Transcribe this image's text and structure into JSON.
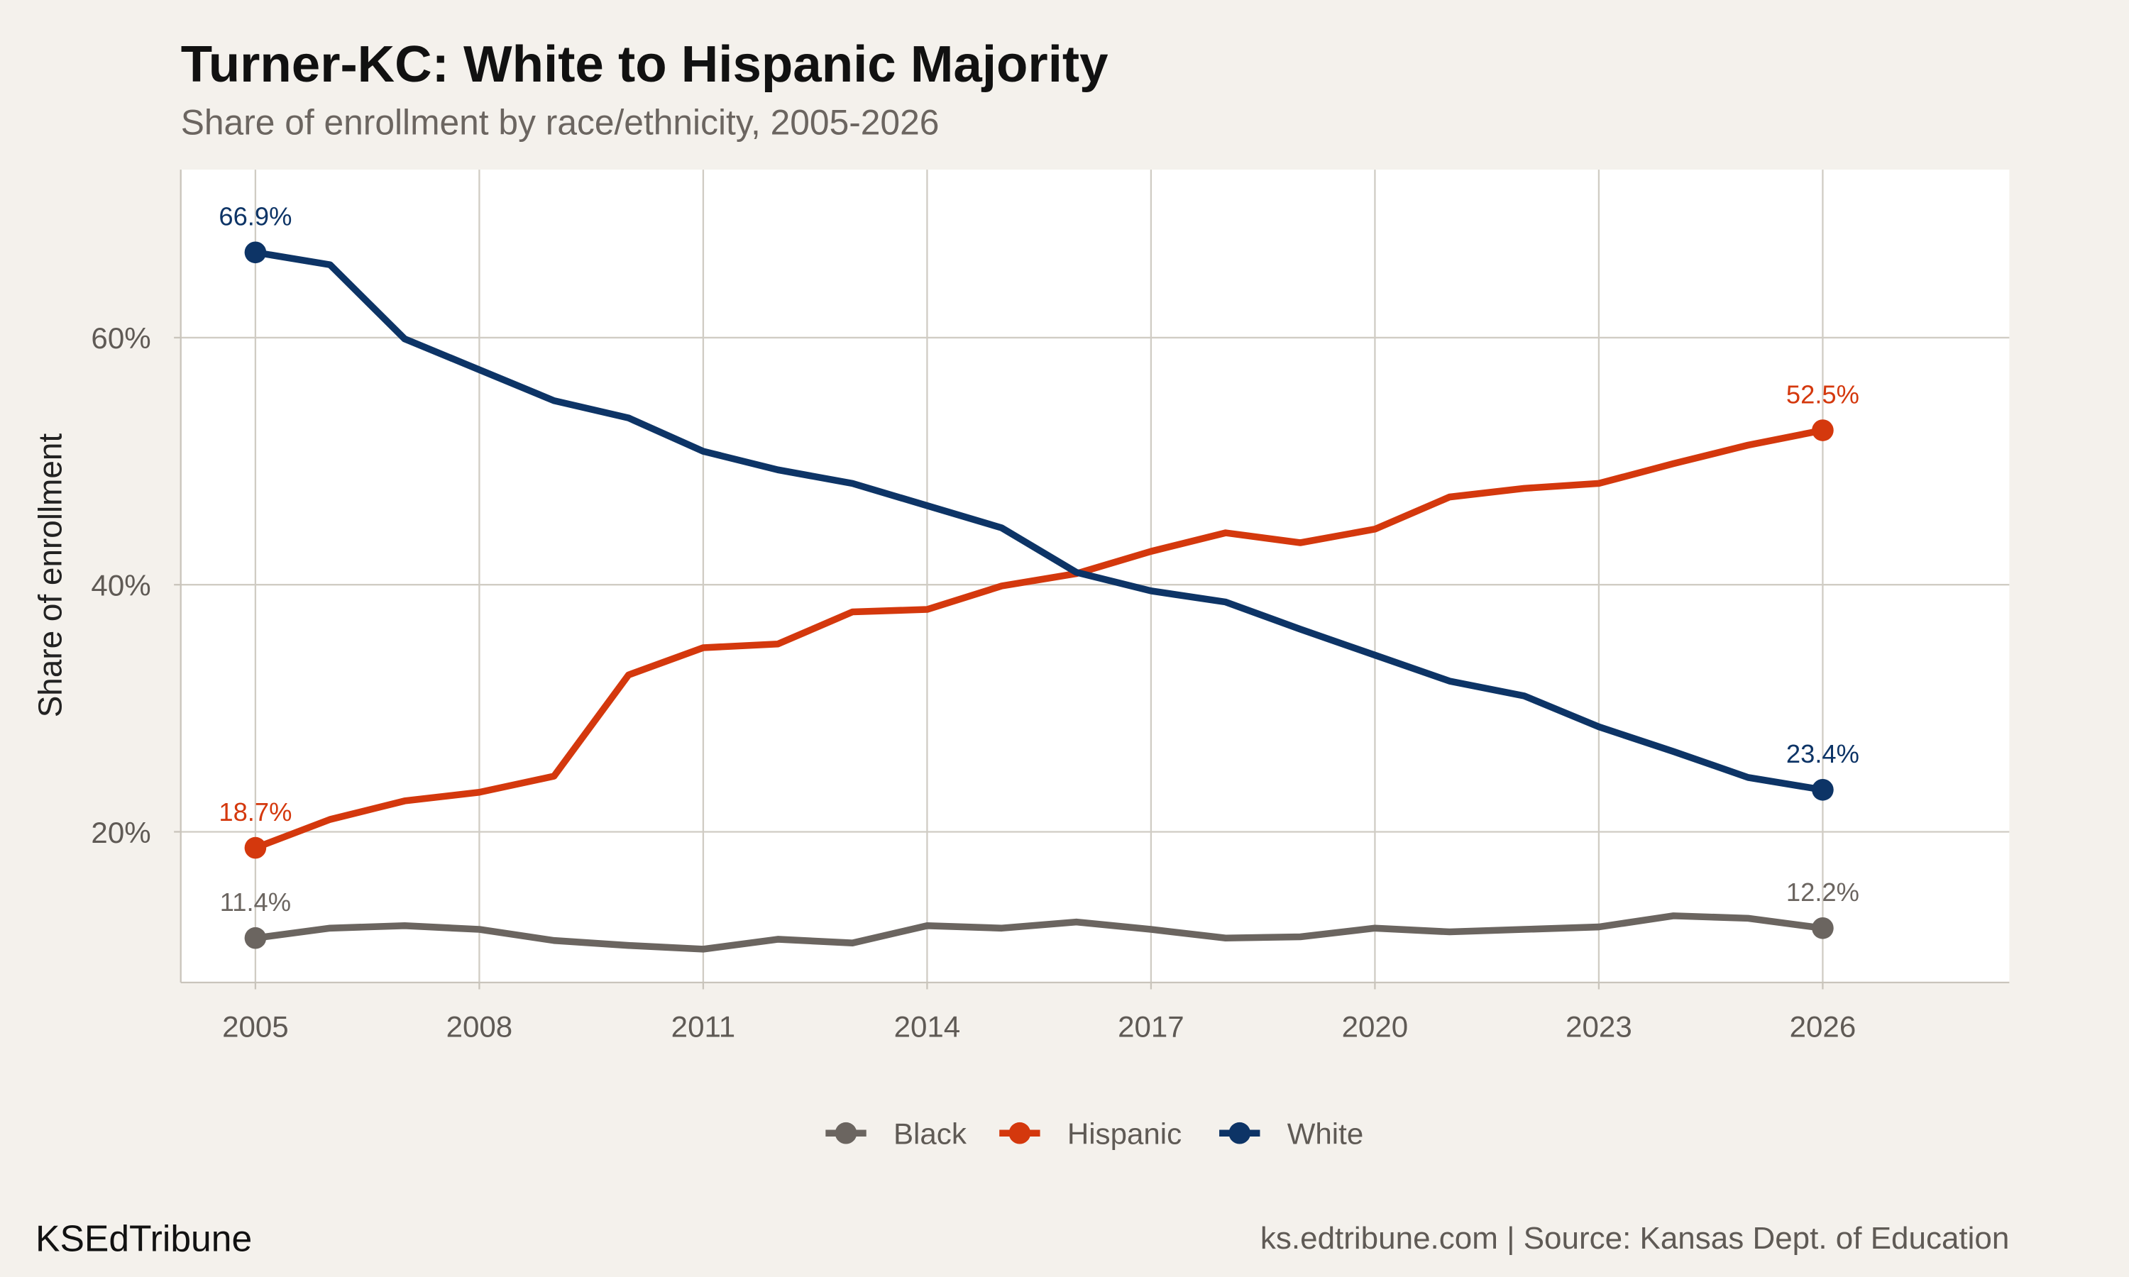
{
  "chart_data": {
    "type": "line",
    "title": "Turner-KC: White to Hispanic Majority",
    "subtitle": "Share of enrollment by race/ethnicity, 2005-2026",
    "xlabel": "",
    "ylabel": "Share of enrollment",
    "xlim": [
      2004,
      2028.5
    ],
    "ylim": [
      7.8,
      73.6
    ],
    "x_ticks": [
      2005,
      2008,
      2011,
      2014,
      2017,
      2020,
      2023,
      2026
    ],
    "x_tick_labels": [
      "2005",
      "2008",
      "2011",
      "2014",
      "2017",
      "2020",
      "2023",
      "2026"
    ],
    "y_ticks": [
      20,
      40,
      60
    ],
    "y_tick_labels": [
      "20%",
      "40%",
      "60%"
    ],
    "grid": true,
    "legend_position": "bottom",
    "x": [
      2005,
      2006,
      2007,
      2008,
      2009,
      2010,
      2011,
      2012,
      2013,
      2014,
      2015,
      2016,
      2017,
      2018,
      2019,
      2020,
      2021,
      2022,
      2023,
      2024,
      2025,
      2026
    ],
    "series": [
      {
        "name": "Black",
        "color": "#6b6560",
        "values": [
          11.4,
          12.2,
          12.4,
          12.1,
          11.2,
          10.8,
          10.5,
          11.3,
          11.0,
          12.4,
          12.2,
          12.7,
          12.1,
          11.4,
          11.5,
          12.2,
          11.9,
          12.1,
          12.3,
          13.2,
          13.0,
          12.2
        ],
        "start_label": "11.4%",
        "end_label": "12.2%"
      },
      {
        "name": "Hispanic",
        "color": "#d4380d",
        "values": [
          18.7,
          21.0,
          22.5,
          23.2,
          24.5,
          32.7,
          34.9,
          35.2,
          37.8,
          38.0,
          39.9,
          40.9,
          42.7,
          44.2,
          43.4,
          44.5,
          47.1,
          47.8,
          48.2,
          49.8,
          51.3,
          52.5
        ],
        "start_label": "18.7%",
        "end_label": "52.5%"
      },
      {
        "name": "White",
        "color": "#0d3466",
        "values": [
          66.9,
          65.9,
          59.9,
          57.4,
          54.9,
          53.5,
          50.8,
          49.3,
          48.2,
          46.4,
          44.6,
          41.0,
          39.5,
          38.6,
          36.4,
          34.3,
          32.2,
          31.0,
          28.5,
          26.5,
          24.4,
          23.4
        ],
        "start_label": "66.9%",
        "end_label": "23.4%"
      }
    ]
  },
  "footer": {
    "brand": "KSEdTribune",
    "source": "ks.edtribune.com | Source: Kansas Dept. of Education"
  },
  "colors": {
    "background": "#f4f1ec",
    "panel": "#ffffff",
    "grid": "#d0ccc4"
  }
}
